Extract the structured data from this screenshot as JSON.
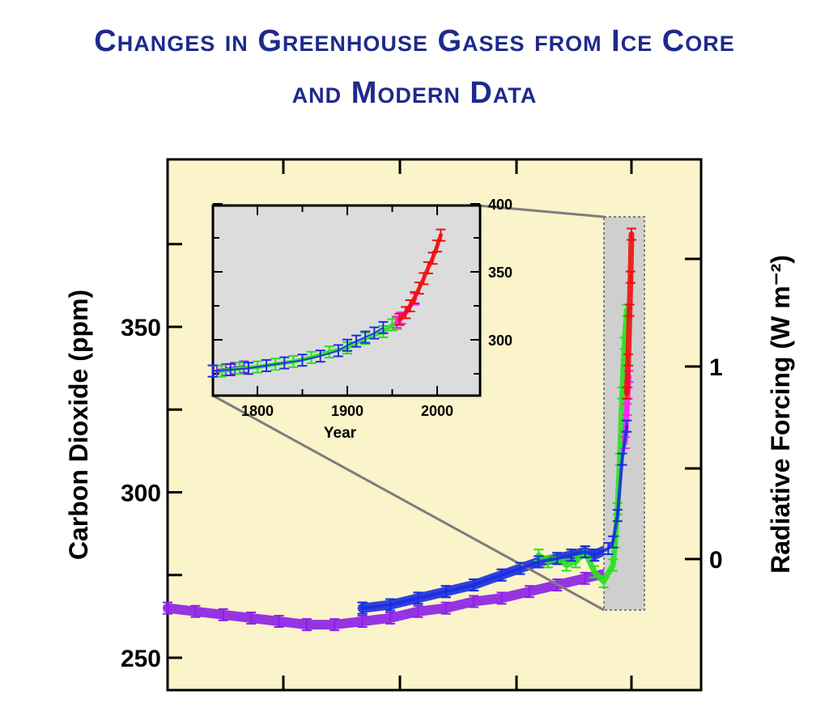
{
  "title_line1": "Changes in Greenhouse Gases from Ice Core",
  "title_line2": "and Modern Data",
  "colors": {
    "title": "#1e2a8c",
    "panel_bg": "#fbf3c9",
    "inset_bg": "#dcdcdc",
    "purple": "#8b1fe6",
    "blue": "#1a2ee0",
    "green": "#27e11f",
    "magenta": "#ff1ef0",
    "red": "#ee1010",
    "cyan": "#28d8e8"
  },
  "chart_data": [
    {
      "name": "main",
      "type": "scatter",
      "ylabel": "Carbon Dioxide (ppm)",
      "ylabel_right": "Radiative Forcing (W m⁻²)",
      "ylim": [
        240,
        395
      ],
      "y_ticks": [
        250,
        300,
        350
      ],
      "y_right_ticks": [
        "0",
        "1"
      ],
      "series": [
        {
          "color": "purple",
          "points": [
            [
              0,
              265
            ],
            [
              6,
              264
            ],
            [
              12,
              263
            ],
            [
              18,
              262
            ],
            [
              24,
              261
            ],
            [
              30,
              260
            ],
            [
              36,
              260
            ],
            [
              42,
              261
            ],
            [
              48,
              262
            ],
            [
              54,
              264
            ],
            [
              60,
              265
            ],
            [
              66,
              267
            ],
            [
              72,
              268
            ],
            [
              78,
              270
            ],
            [
              84,
              272
            ],
            [
              90,
              274
            ],
            [
              96,
              276
            ],
            [
              100,
              277
            ]
          ]
        },
        {
          "color": "blue",
          "points": [
            [
              42,
              265
            ],
            [
              48,
              266
            ],
            [
              54,
              268
            ],
            [
              60,
              270
            ],
            [
              66,
              272
            ],
            [
              72,
              275
            ],
            [
              76,
              277
            ],
            [
              80,
              279
            ],
            [
              84,
              280
            ],
            [
              87,
              281
            ],
            [
              90,
              282
            ],
            [
              92,
              281
            ],
            [
              95,
              283
            ],
            [
              96,
              285
            ],
            [
              97,
              293
            ],
            [
              98,
              310
            ],
            [
              99,
              320
            ]
          ]
        },
        {
          "color": "green",
          "points": [
            [
              80,
              281
            ],
            [
              82,
              279
            ],
            [
              84,
              280
            ],
            [
              86,
              278
            ],
            [
              88,
              279
            ],
            [
              90,
              282
            ],
            [
              92,
              276
            ],
            [
              94,
              273
            ],
            [
              96,
              278
            ],
            [
              96.5,
              285
            ],
            [
              97,
              295
            ],
            [
              97.5,
              310
            ],
            [
              98,
              330
            ],
            [
              98.5,
              345
            ],
            [
              99,
              355
            ]
          ]
        },
        {
          "color": "magenta",
          "points": [
            [
              98.6,
              315
            ],
            [
              98.8,
              320
            ],
            [
              99,
              325
            ],
            [
              99.2,
              330
            ],
            [
              99.4,
              335
            ]
          ]
        },
        {
          "color": "red",
          "points": [
            [
              99,
              330
            ],
            [
              99.3,
              340
            ],
            [
              99.6,
              355
            ],
            [
              99.8,
              365
            ],
            [
              100,
              378
            ]
          ]
        }
      ]
    },
    {
      "name": "inset",
      "type": "scatter",
      "xlabel": "Year",
      "xlim": [
        1750,
        2020
      ],
      "ylim": [
        245,
        400
      ],
      "x_ticks": [
        1800,
        1900,
        2000
      ],
      "y_ticks": [
        300,
        350,
        400
      ],
      "series": [
        {
          "color": "purple",
          "points": [
            [
              1755,
              277
            ],
            [
              1765,
              278
            ],
            [
              1775,
              279
            ],
            [
              1785,
              280
            ]
          ]
        },
        {
          "color": "blue",
          "points": [
            [
              1750,
              277
            ],
            [
              1770,
              278
            ],
            [
              1790,
              279
            ],
            [
              1810,
              281
            ],
            [
              1830,
              283
            ],
            [
              1850,
              285
            ],
            [
              1870,
              288
            ],
            [
              1890,
              292
            ],
            [
              1900,
              296
            ],
            [
              1910,
              299
            ],
            [
              1920,
              302
            ],
            [
              1930,
              305
            ],
            [
              1940,
              309
            ]
          ]
        },
        {
          "color": "green",
          "points": [
            [
              1760,
              277
            ],
            [
              1780,
              279
            ],
            [
              1800,
              280
            ],
            [
              1820,
              282
            ],
            [
              1840,
              284
            ],
            [
              1860,
              287
            ],
            [
              1880,
              291
            ],
            [
              1900,
              294
            ],
            [
              1920,
              301
            ],
            [
              1940,
              306
            ],
            [
              1950,
              311
            ],
            [
              1955,
              312
            ]
          ]
        },
        {
          "color": "magenta",
          "points": [
            [
              1955,
              313
            ],
            [
              1960,
              316
            ],
            [
              1965,
              320
            ],
            [
              1970,
              325
            ],
            [
              1975,
              330
            ]
          ]
        },
        {
          "color": "red",
          "points": [
            [
              1958,
              315
            ],
            [
              1965,
              320
            ],
            [
              1970,
              325
            ],
            [
              1975,
              331
            ],
            [
              1980,
              338
            ],
            [
              1985,
              345
            ],
            [
              1990,
              353
            ],
            [
              1995,
              360
            ],
            [
              2000,
              369
            ],
            [
              2004,
              377
            ]
          ]
        }
      ]
    }
  ]
}
